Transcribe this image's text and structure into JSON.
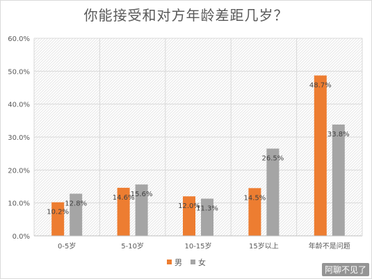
{
  "chart_data": {
    "type": "bar",
    "title": "你能接受和对方年龄差距几岁？",
    "categories": [
      "0-5岁",
      "5-10岁",
      "10-15岁",
      "15岁以上",
      "年龄不是问题"
    ],
    "series": [
      {
        "name": "男",
        "values": [
          10.2,
          14.6,
          12.0,
          14.5,
          48.7
        ],
        "labels": [
          "10.2%",
          "14.6%",
          "12.0%",
          "14.5%",
          "48.7%"
        ],
        "color": "#ED7D31"
      },
      {
        "name": "女",
        "values": [
          12.8,
          15.6,
          11.3,
          26.5,
          33.8
        ],
        "labels": [
          "12.8%",
          "15.6%",
          "11.3%",
          "26.5%",
          "33.8%"
        ],
        "color": "#A5A5A5"
      }
    ],
    "ylim": [
      0,
      60
    ],
    "yticks": [
      "0.0%",
      "10.0%",
      "20.0%",
      "30.0%",
      "40.0%",
      "50.0%",
      "60.0%"
    ],
    "grid": true,
    "legend_position": "bottom"
  },
  "watermark": "阿聊不见了"
}
